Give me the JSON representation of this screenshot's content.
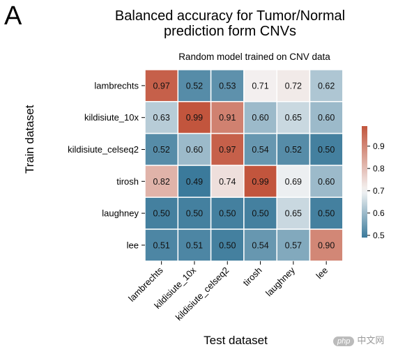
{
  "panel_label": "A",
  "title_lines": [
    "Balanced accuracy for Tumor/Normal",
    "prediction form CNVs"
  ],
  "watermark": {
    "badge": "php",
    "text": "中文网"
  },
  "chart_data": {
    "type": "heatmap",
    "subtitle": "Random model trained on CNV data",
    "xlabel": "Test dataset",
    "ylabel": "Train dataset",
    "x_categories": [
      "lambrechts",
      "kildisiute_10x",
      "kildisiute_celseq2",
      "tirosh",
      "laughney",
      "lee"
    ],
    "y_categories": [
      "lambrechts",
      "kildisiute_10x",
      "kildisiute_celseq2",
      "tirosh",
      "laughney",
      "lee"
    ],
    "values": [
      [
        "0.97",
        "0.52",
        "0.53",
        "0.71",
        "0.72",
        "0.62"
      ],
      [
        "0.63",
        "0.99",
        "0.91",
        "0.60",
        "0.65",
        "0.60"
      ],
      [
        "0.52",
        "0.60",
        "0.97",
        "0.54",
        "0.52",
        "0.50"
      ],
      [
        "0.82",
        "0.49",
        "0.74",
        "0.99",
        "0.69",
        "0.60"
      ],
      [
        "0.50",
        "0.50",
        "0.50",
        "0.50",
        "0.65",
        "0.50"
      ],
      [
        "0.51",
        "0.51",
        "0.50",
        "0.54",
        "0.57",
        "0.90"
      ]
    ],
    "colorbar": {
      "min": 0.49,
      "max": 0.99,
      "center": 0.7,
      "ticks": [
        "0.5",
        "0.6",
        "0.7",
        "0.8",
        "0.9"
      ],
      "colors": {
        "low": "#3b7a9b",
        "mid": "#f5f5f5",
        "high": "#c2553d"
      }
    }
  }
}
